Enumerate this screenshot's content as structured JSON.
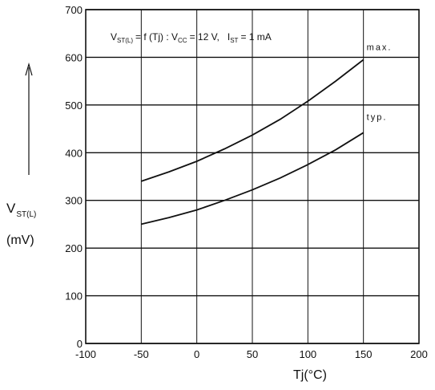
{
  "chart_data": {
    "type": "line",
    "annotation": "V<sub>ST(L)</sub> = f (Tj) : Vcc = 12 V, I<sub>ST</sub> = 1 mA",
    "annotation_parts": {
      "v": "V",
      "v_sub": "ST(L)",
      "mid": "= f (Tj) : V",
      "vcc_sub": "CC",
      "vcc_val": "= 12 V,",
      "i": "I",
      "i_sub": "ST",
      "i_val": "= 1 mA"
    },
    "ylabel_main": "V",
    "ylabel_sub": "ST(L)",
    "yunit": "(mV)",
    "xlabel": "Tj(°C)",
    "xlim": [
      -100,
      200
    ],
    "ylim": [
      0,
      700
    ],
    "xticks": [
      "-100",
      "-50",
      "0",
      "50",
      "100",
      "150",
      "200"
    ],
    "yticks": [
      "0",
      "100",
      "200",
      "300",
      "400",
      "500",
      "600",
      "700"
    ],
    "grid": true,
    "series": [
      {
        "name": "max.",
        "x": [
          -50,
          -25,
          0,
          25,
          50,
          75,
          100,
          125,
          150
        ],
        "y": [
          340,
          360,
          382,
          408,
          437,
          470,
          508,
          550,
          595
        ]
      },
      {
        "name": "typ.",
        "x": [
          -50,
          -25,
          0,
          25,
          50,
          75,
          100,
          125,
          150
        ],
        "y": [
          250,
          264,
          280,
          300,
          322,
          347,
          375,
          406,
          442
        ]
      }
    ]
  }
}
